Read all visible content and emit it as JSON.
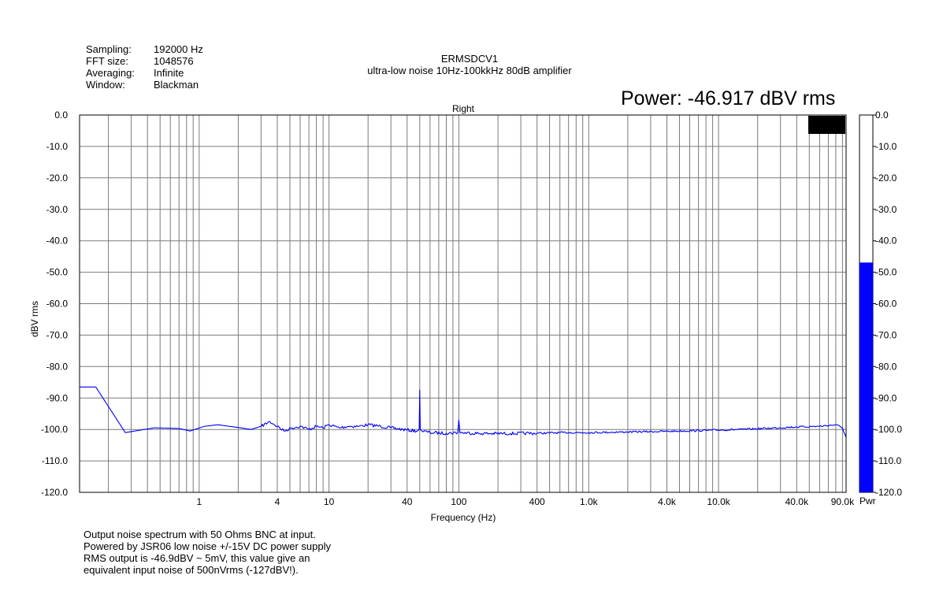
{
  "info": {
    "rows": [
      {
        "label": "Sampling:",
        "value": "192000 Hz"
      },
      {
        "label": "FFT size:",
        "value": "1048576"
      },
      {
        "label": "Averaging:",
        "value": "Infinite"
      },
      {
        "label": "Window:",
        "value": "Blackman"
      }
    ]
  },
  "header": {
    "title": "ERMSDCV1",
    "subtitle": "ultra-low noise 10Hz-100kkHz 80dB amplifier",
    "power": "Power: -46.917 dBV rms",
    "channel": "Right"
  },
  "notes": [
    "Output noise spectrum with 50 Ohms BNC at input.",
    "Powered by JSR06 low noise +/-15V DC power supply",
    "RMS output is -46.9dBV ~ 5mV, this value give an",
    "equivalent input noise of 500nVrms (-127dBV!)."
  ],
  "chart_data": {
    "type": "line",
    "title": "Right",
    "xlabel": "Frequency (Hz)",
    "ylabel": "dBV rms",
    "xscale": "log",
    "xlim": [
      0.12,
      96000
    ],
    "ylim": [
      -120,
      0
    ],
    "grid": true,
    "x_tick_labels": [
      {
        "v": 1,
        "t": "1"
      },
      {
        "v": 4,
        "t": "4"
      },
      {
        "v": 10,
        "t": "10"
      },
      {
        "v": 40,
        "t": "40"
      },
      {
        "v": 100,
        "t": "100"
      },
      {
        "v": 400,
        "t": "400"
      },
      {
        "v": 1000,
        "t": "1.0k"
      },
      {
        "v": 4000,
        "t": "4.0k"
      },
      {
        "v": 10000,
        "t": "10.0k"
      },
      {
        "v": 40000,
        "t": "40.0k"
      },
      {
        "v": 90000,
        "t": "90.0k"
      }
    ],
    "y_ticks": [
      0,
      -10,
      -20,
      -30,
      -40,
      -50,
      -60,
      -70,
      -80,
      -90,
      -100,
      -110,
      -120
    ],
    "y_tick_labels": [
      "0.0",
      "-10.0",
      "-20.0",
      "-30.0",
      "-40.0",
      "-50.0",
      "-60.0",
      "-70.0",
      "-80.0",
      "-90.0",
      "-100.0",
      "-110.0",
      "-120.0"
    ],
    "series": [
      {
        "color": "#0000ff",
        "points": [
          [
            0.12,
            -86.5
          ],
          [
            0.16,
            -86.5
          ],
          [
            0.27,
            -101
          ],
          [
            0.45,
            -99.5
          ],
          [
            0.7,
            -99.7
          ],
          [
            0.85,
            -100.5
          ],
          [
            1.1,
            -99
          ],
          [
            1.4,
            -98.5
          ],
          [
            1.7,
            -99
          ],
          [
            2.1,
            -99.5
          ],
          [
            2.5,
            -100
          ],
          [
            3.0,
            -99
          ],
          [
            3.5,
            -97.5
          ],
          [
            4.0,
            -99
          ],
          [
            4.5,
            -100.5
          ],
          [
            5.2,
            -99.5
          ],
          [
            6.0,
            -99
          ],
          [
            7.0,
            -100
          ],
          [
            8.0,
            -99
          ],
          [
            9.0,
            -99.5
          ],
          [
            10,
            -98.5
          ],
          [
            12,
            -99.5
          ],
          [
            14,
            -99
          ],
          [
            17,
            -99
          ],
          [
            20,
            -98.5
          ],
          [
            25,
            -99
          ],
          [
            30,
            -99.5
          ],
          [
            40,
            -100.2
          ],
          [
            48,
            -100.5
          ],
          [
            49.5,
            -100
          ],
          [
            50,
            -87.5
          ],
          [
            50.5,
            -100
          ],
          [
            52,
            -100.5
          ],
          [
            60,
            -101
          ],
          [
            80,
            -101.2
          ],
          [
            98,
            -101
          ],
          [
            100,
            -97
          ],
          [
            102,
            -101
          ],
          [
            150,
            -101.3
          ],
          [
            250,
            -101.3
          ],
          [
            400,
            -101.2
          ],
          [
            700,
            -101
          ],
          [
            1000,
            -101
          ],
          [
            2000,
            -100.8
          ],
          [
            4000,
            -100.6
          ],
          [
            8000,
            -100.3
          ],
          [
            15000,
            -100
          ],
          [
            25000,
            -99.6
          ],
          [
            40000,
            -99.2
          ],
          [
            60000,
            -99
          ],
          [
            80000,
            -98.5
          ],
          [
            90000,
            -99.5
          ],
          [
            96000,
            -102.5
          ]
        ]
      }
    ],
    "power_meter": {
      "label": "Pwr",
      "value": -46.917,
      "range": [
        -120,
        0
      ],
      "fill_color": "#0000ff",
      "tick_labels": [
        "0.0",
        "-10.0",
        "-20.0",
        "-30.0",
        "-40.0",
        "-50.0",
        "-60.0",
        "-70.0",
        "-80.0",
        "-90.0",
        "-100.0",
        "-110.0",
        "-120.0"
      ]
    }
  }
}
